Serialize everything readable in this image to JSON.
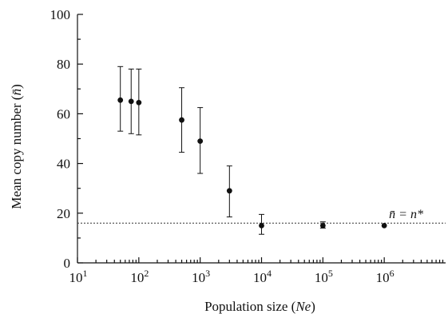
{
  "chart_data": {
    "type": "scatter",
    "title": "",
    "xscale": "log",
    "xlim": [
      10,
      10000000
    ],
    "ylim": [
      0,
      100
    ],
    "x_ticks": [
      {
        "base": "10",
        "exp": "1",
        "value": 10
      },
      {
        "base": "10",
        "exp": "2",
        "value": 100
      },
      {
        "base": "10",
        "exp": "3",
        "value": 1000
      },
      {
        "base": "10",
        "exp": "4",
        "value": 10000
      },
      {
        "base": "10",
        "exp": "5",
        "value": 100000
      },
      {
        "base": "10",
        "exp": "6",
        "value": 1000000
      }
    ],
    "y_ticks": [
      "0",
      "20",
      "40",
      "60",
      "80",
      "100"
    ],
    "xlabel": {
      "prefix": "Population size (",
      "italic": "Ne",
      "suffix": ")"
    },
    "ylabel": {
      "prefix": "Mean copy number (",
      "italic": "n̄",
      "suffix": ")"
    },
    "reference_line": {
      "y": 16,
      "label": "n̄ = n*"
    },
    "points": [
      {
        "x": 50,
        "y": 65.5,
        "err_low": 53,
        "err_high": 79
      },
      {
        "x": 75,
        "y": 65,
        "err_low": 52,
        "err_high": 78
      },
      {
        "x": 100,
        "y": 64.5,
        "err_low": 51.5,
        "err_high": 78
      },
      {
        "x": 500,
        "y": 57.5,
        "err_low": 44.5,
        "err_high": 70.5
      },
      {
        "x": 1000,
        "y": 49,
        "err_low": 36,
        "err_high": 62.5
      },
      {
        "x": 3000,
        "y": 29,
        "err_low": 18.5,
        "err_high": 39
      },
      {
        "x": 10000,
        "y": 15,
        "err_low": 11.5,
        "err_high": 19.5
      },
      {
        "x": 100000,
        "y": 15,
        "err_low": 14,
        "err_high": 16.5
      },
      {
        "x": 1000000,
        "y": 15,
        "err_low": 15,
        "err_high": 15
      }
    ],
    "grid": false,
    "legend": "none"
  }
}
